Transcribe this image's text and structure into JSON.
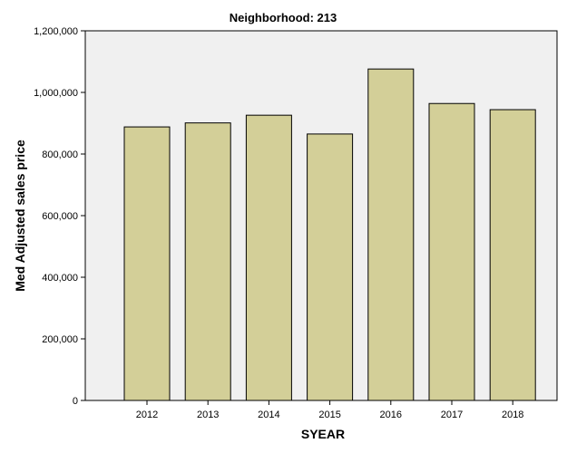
{
  "chart_data": {
    "type": "bar",
    "title": "Neighborhood: 213",
    "xlabel": "SYEAR",
    "ylabel": "Med Adjusted sales price",
    "categories": [
      "2012",
      "2013",
      "2014",
      "2015",
      "2016",
      "2017",
      "2018"
    ],
    "values": [
      888000,
      901000,
      926000,
      865000,
      1076000,
      964000,
      944000
    ],
    "ylim": [
      0,
      1200000
    ],
    "yticks": [
      0,
      200000,
      400000,
      600000,
      800000,
      1000000,
      1200000
    ],
    "ytick_labels": [
      "0",
      "200,000",
      "400,000",
      "600,000",
      "800,000",
      "1,000,000",
      "1,200,000"
    ],
    "grid": false,
    "legend": "none",
    "colors": {
      "bar_fill": "#d3cf98",
      "bar_stroke": "#000000",
      "plot_background": "#f0f0f0"
    }
  }
}
